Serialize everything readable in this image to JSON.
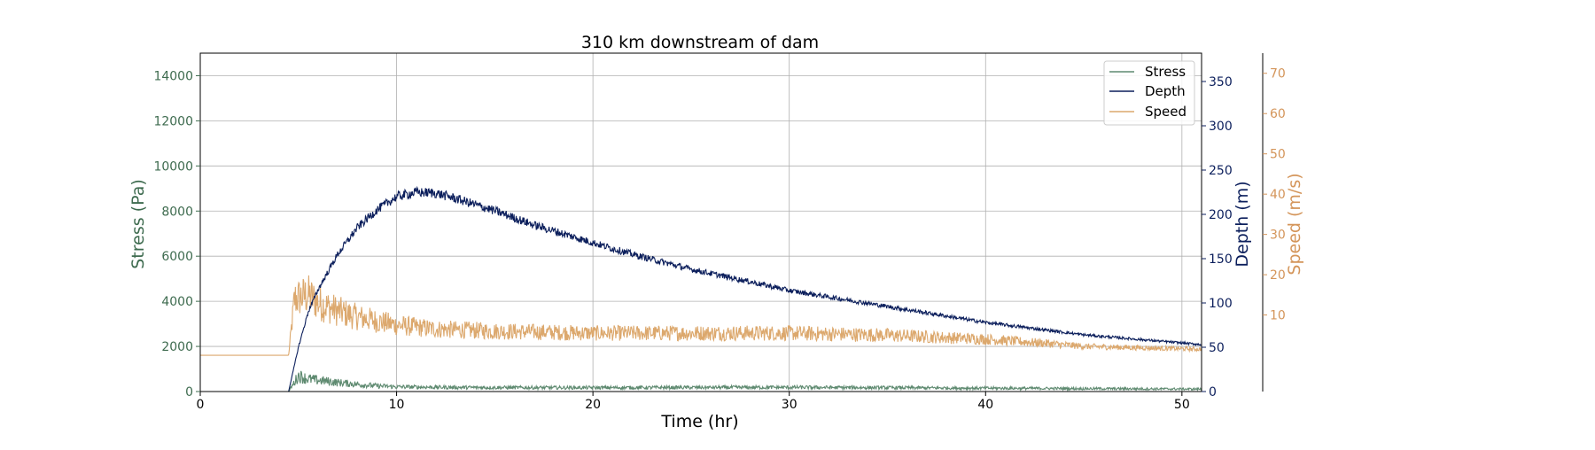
{
  "chart_data": {
    "type": "line",
    "title": "310 km downstream of dam",
    "xlabel": "Time (hr)",
    "xlim": [
      0,
      51
    ],
    "x_ticks": [
      0,
      10,
      20,
      30,
      40,
      50
    ],
    "grid": true,
    "legend_position": "top-right",
    "axes": {
      "stress": {
        "label": "Stress (Pa)",
        "side": "left",
        "ylim": [
          0,
          15000
        ],
        "ticks": [
          0,
          2000,
          4000,
          6000,
          8000,
          10000,
          12000,
          14000
        ],
        "color": "#3e6b4f"
      },
      "depth": {
        "label": "Depth (m)",
        "side": "right",
        "ylim": [
          0,
          382
        ],
        "ticks": [
          0,
          50,
          100,
          150,
          200,
          250,
          300,
          350
        ],
        "color": "#0c1f5c"
      },
      "speed": {
        "label": "Speed (m/s)",
        "side": "right-outer",
        "ylim": [
          -9,
          75
        ],
        "ticks": [
          10,
          20,
          30,
          40,
          50,
          60,
          70
        ],
        "color": "#d4955a"
      }
    },
    "series": [
      {
        "name": "Stress",
        "axis": "stress",
        "color": "#5e8a70",
        "x": [
          0,
          4.5,
          5.0,
          5.5,
          6.0,
          7.0,
          8.0,
          9.0,
          10.0,
          12.0,
          15.0,
          20.0,
          25.0,
          30.0,
          35.0,
          40.0,
          45.0,
          51.0
        ],
        "y": [
          0,
          0,
          700,
          550,
          500,
          400,
          320,
          250,
          210,
          190,
          175,
          170,
          180,
          185,
          170,
          150,
          130,
          110
        ],
        "noise": 0.45
      },
      {
        "name": "Depth",
        "axis": "depth",
        "color": "#0c1f5c",
        "x": [
          0,
          4.5,
          5.0,
          5.5,
          6.0,
          7.0,
          8.0,
          9.0,
          10.0,
          11.0,
          12.0,
          13.0,
          15.0,
          17.0,
          20.0,
          22.0,
          25.0,
          28.0,
          30.0,
          35.0,
          40.0,
          45.0,
          51.0
        ],
        "y": [
          0,
          0,
          50,
          90,
          115,
          155,
          185,
          205,
          220,
          225,
          224,
          218,
          204,
          188,
          168,
          155,
          138,
          124,
          114,
          96,
          78,
          64,
          53
        ],
        "noise": 0.025
      },
      {
        "name": "Speed",
        "axis": "speed",
        "color": "#dca86d",
        "x": [
          0,
          4.5,
          4.8,
          5.5,
          6.0,
          7.0,
          8.0,
          9.0,
          10.0,
          12.0,
          15.0,
          20.0,
          25.0,
          30.0,
          35.0,
          40.0,
          43.0,
          45.0,
          51.0
        ],
        "y": [
          0,
          0,
          14,
          15,
          13,
          11,
          9.5,
          8.5,
          7.5,
          6.5,
          6.0,
          5.5,
          5.5,
          5.5,
          5.0,
          4.0,
          3.0,
          2.2,
          1.5
        ],
        "noise": 0.35
      }
    ]
  }
}
